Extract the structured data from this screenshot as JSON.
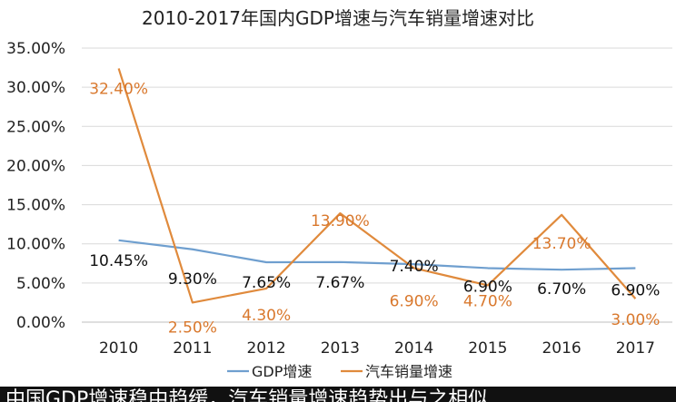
{
  "chart_data": {
    "type": "line",
    "title": "2010-2017年国内GDP增速与汽车销量增速对比",
    "categories": [
      "2010",
      "2011",
      "2012",
      "2013",
      "2014",
      "2015",
      "2016",
      "2017"
    ],
    "ylim": [
      0,
      35
    ],
    "yticks": [
      "0.00%",
      "5.00%",
      "10.00%",
      "15.00%",
      "20.00%",
      "25.00%",
      "30.00%",
      "35.00%"
    ],
    "grid": true,
    "legend": "bottom",
    "series": [
      {
        "name": "GDP增速",
        "color": "#6f9fcf",
        "values": [
          10.45,
          9.3,
          7.65,
          7.67,
          7.4,
          6.9,
          6.7,
          6.9
        ],
        "labels": [
          "10.45%",
          "9.30%",
          "7.65%",
          "7.67%",
          "7.40%",
          "6.90%",
          "6.70%",
          "6.90%"
        ],
        "label_color": "#111111"
      },
      {
        "name": "汽车销量增速",
        "color": "#e08a3c",
        "values": [
          32.4,
          2.5,
          4.3,
          13.9,
          6.9,
          4.7,
          13.7,
          3.0
        ],
        "labels": [
          "32.40%",
          "2.50%",
          "4.30%",
          "13.90%",
          "6.90%",
          "4.70%",
          "13.70%",
          "3.00%"
        ],
        "label_color": "#d9782d"
      }
    ]
  },
  "caption": "中国GDP增速稳中趋缓，汽车销量增速趋势出与之相似"
}
